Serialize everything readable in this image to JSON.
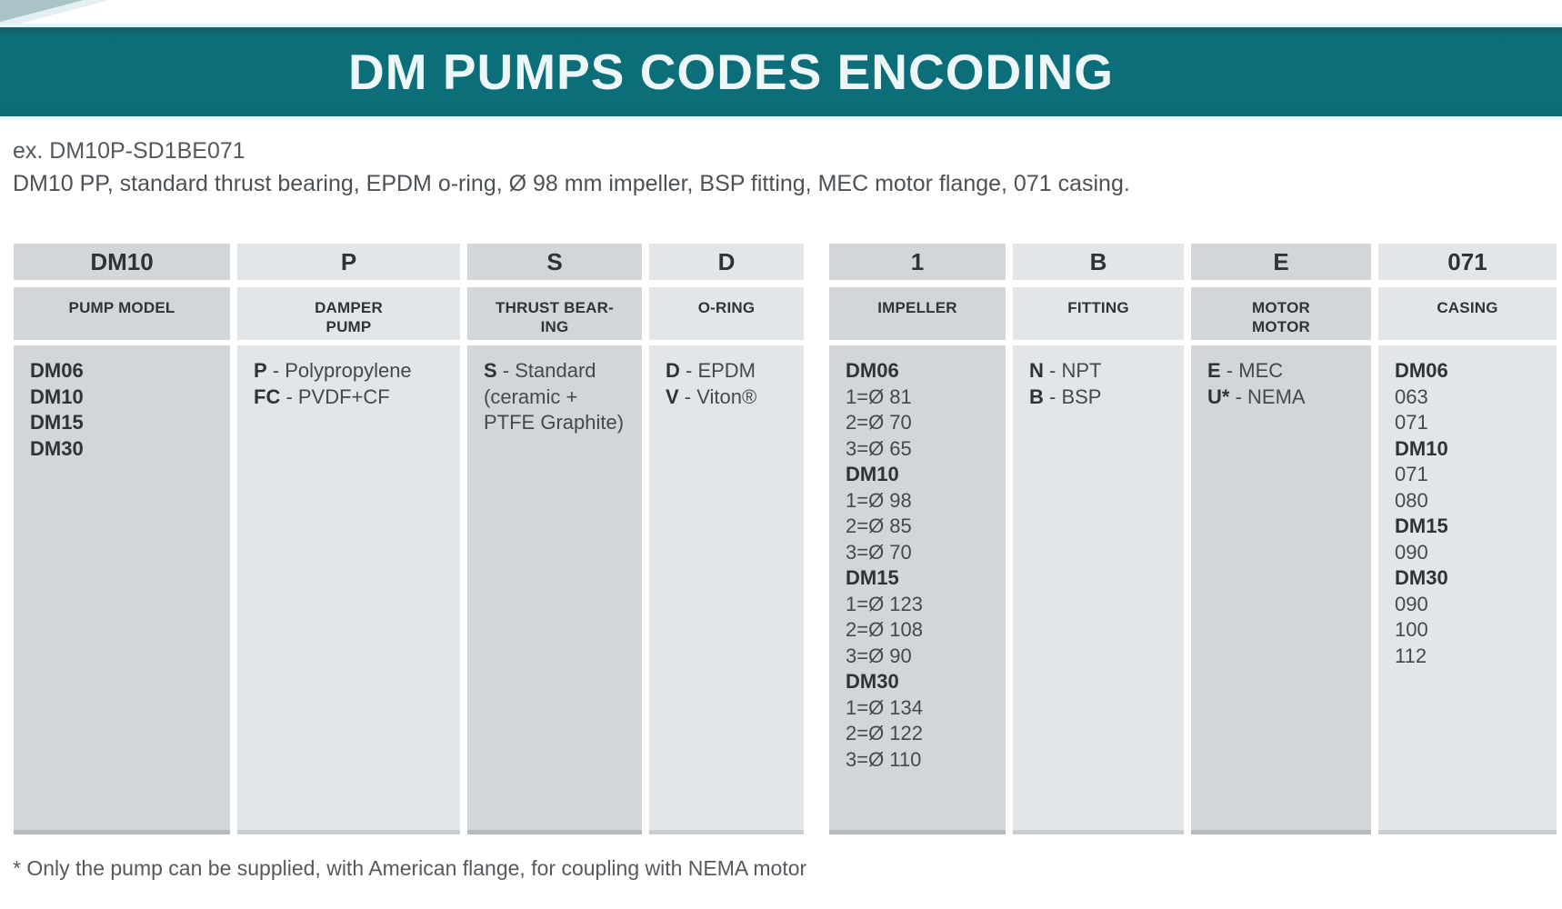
{
  "banner": {
    "title": "DM PUMPS CODES ENCODING",
    "accent_color": "#0c6e79"
  },
  "example": {
    "line1": "ex. DM10P-SD1BE071",
    "line2": "DM10 PP, standard thrust bearing, EPDM o-ring, Ø 98 mm impeller, BSP fitting, MEC motor flange, 071 casing."
  },
  "footnote": "* Only the pump can be supplied, with American flange, for coupling with NEMA motor",
  "table": {
    "columns": [
      {
        "code": "DM10",
        "label": "PUMP MODEL",
        "lines": [
          {
            "b": "DM06"
          },
          {
            "b": "DM10"
          },
          {
            "b": "DM15"
          },
          {
            "b": "DM30"
          }
        ]
      },
      {
        "code": "P",
        "label": "DAMPER\nPUMP",
        "lines": [
          {
            "b": "P",
            "r": " - Polypropylene"
          },
          {
            "b": "FC",
            "r": " - PVDF+CF"
          }
        ]
      },
      {
        "code": "S",
        "label": "THRUST BEAR-\nING",
        "lines": [
          {
            "b": "S",
            "r": " - Standard"
          },
          {
            "r": "(ceramic +"
          },
          {
            "r": "PTFE Graphite)"
          }
        ]
      },
      {
        "code": "D",
        "label": "O-RING",
        "lines": [
          {
            "b": "D",
            "r": " - EPDM"
          },
          {
            "b": "V",
            "r": " - Viton®"
          }
        ]
      },
      {
        "code": "1",
        "label": "IMPELLER",
        "lines": [
          {
            "b": "DM06"
          },
          {
            "r": "1=Ø 81"
          },
          {
            "r": "2=Ø 70"
          },
          {
            "r": "3=Ø 65"
          },
          {
            "b": "DM10"
          },
          {
            "r": "1=Ø 98"
          },
          {
            "r": "2=Ø 85"
          },
          {
            "r": "3=Ø 70"
          },
          {
            "b": "DM15"
          },
          {
            "r": "1=Ø 123"
          },
          {
            "r": "2=Ø 108"
          },
          {
            "r": "3=Ø 90"
          },
          {
            "b": "DM30"
          },
          {
            "r": "1=Ø 134"
          },
          {
            "r": "2=Ø 122"
          },
          {
            "r": "3=Ø 110"
          }
        ]
      },
      {
        "code": "B",
        "label": "FITTING",
        "lines": [
          {
            "b": "N",
            "r": " - NPT"
          },
          {
            "b": "B",
            "r": " - BSP"
          }
        ]
      },
      {
        "code": "E",
        "label": "MOTOR\nMOTOR",
        "lines": [
          {
            "b": "E",
            "r": " - MEC"
          },
          {
            "b": "U*",
            "r": " - NEMA"
          }
        ]
      },
      {
        "code": "071",
        "label": "CASING",
        "lines": [
          {
            "b": "DM06"
          },
          {
            "r": "063"
          },
          {
            "r": "071"
          },
          {
            "b": "DM10"
          },
          {
            "r": "071"
          },
          {
            "r": "080"
          },
          {
            "b": "DM15"
          },
          {
            "r": "090"
          },
          {
            "b": "DM30"
          },
          {
            "r": "090"
          },
          {
            "r": "100"
          },
          {
            "r": "112"
          }
        ]
      }
    ]
  }
}
